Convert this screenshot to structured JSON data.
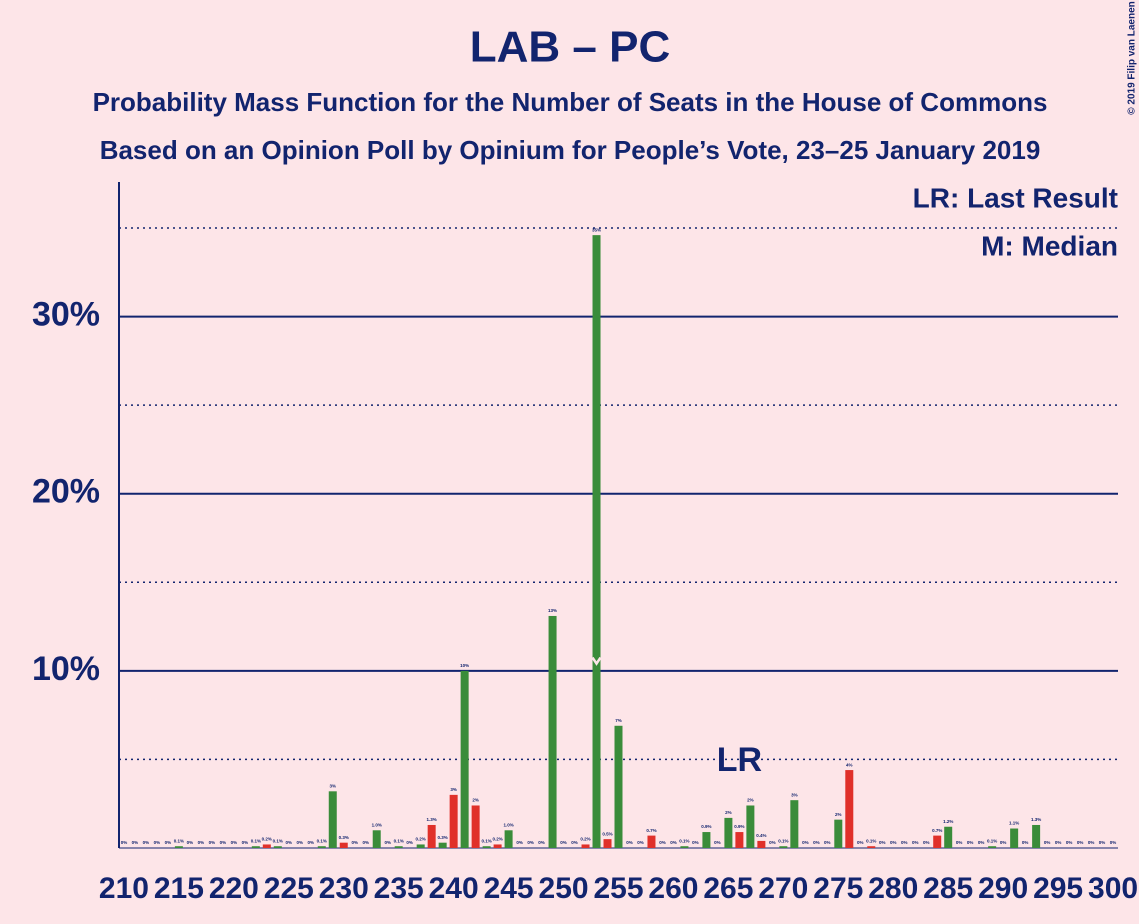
{
  "chart_data": {
    "type": "bar",
    "title": "LAB – PC",
    "subtitle": "Probability Mass Function for the Number of Seats in the House of Commons",
    "subtitle2": "Based on an Opinion Poll by Opinium for People’s Vote, 23–25 January 2019",
    "legend_lr": "LR: Last Result",
    "legend_median": "M: Median",
    "annotation_lr": "LR",
    "copyright": "© 2019 Filip van Laenen",
    "last_result": 266,
    "median": 253,
    "x": [
      210,
      211,
      212,
      213,
      214,
      215,
      216,
      217,
      218,
      219,
      220,
      221,
      222,
      223,
      224,
      225,
      226,
      227,
      228,
      229,
      230,
      231,
      232,
      233,
      234,
      235,
      236,
      237,
      238,
      239,
      240,
      241,
      242,
      243,
      244,
      245,
      246,
      247,
      248,
      249,
      250,
      251,
      252,
      253,
      254,
      255,
      256,
      257,
      258,
      259,
      260,
      261,
      262,
      263,
      264,
      265,
      266,
      267,
      268,
      269,
      270,
      271,
      272,
      273,
      274,
      275,
      276,
      277,
      278,
      279,
      280,
      281,
      282,
      283,
      284,
      285,
      286,
      287,
      288,
      289,
      290,
      291,
      292,
      293,
      294,
      295,
      296,
      297,
      298,
      299,
      300
    ],
    "values": [
      0,
      0,
      0,
      0,
      0,
      0.1,
      0,
      0,
      0,
      0,
      0,
      0,
      0.1,
      0.2,
      0.1,
      0,
      0,
      0,
      0.1,
      3.2,
      0.3,
      0,
      0,
      1.0,
      0,
      0.1,
      0,
      0.2,
      1.3,
      0.3,
      3.0,
      10.0,
      2.4,
      0.1,
      0.2,
      1.0,
      0,
      0,
      0,
      13.1,
      0,
      0,
      0.2,
      34.6,
      0.5,
      6.9,
      0,
      0,
      0.7,
      0,
      0,
      0.1,
      0,
      0.9,
      0,
      1.7,
      0.9,
      2.4,
      0.4,
      0,
      0.1,
      2.7,
      0,
      0,
      0,
      1.6,
      4.4,
      0,
      0.1,
      0,
      0,
      0,
      0,
      0,
      0.7,
      1.2,
      0,
      0,
      0,
      0.1,
      0,
      1.1,
      0,
      1.3,
      0,
      0,
      0,
      0,
      0,
      0,
      0
    ],
    "value_labels": [
      "0%",
      "0%",
      "0%",
      "0%",
      "0%",
      "0.1%",
      "0%",
      "0%",
      "0%",
      "0%",
      "0%",
      "0%",
      "0.1%",
      "0.2%",
      "0.1%",
      "0%",
      "0%",
      "0%",
      "0.1%",
      "3%",
      "0.3%",
      "0%",
      "0%",
      "1.0%",
      "0%",
      "0.1%",
      "0%",
      "0.2%",
      "1.3%",
      "0.3%",
      "3%",
      "10%",
      "2%",
      "0.1%",
      "0.2%",
      "1.0%",
      "0%",
      "0%",
      "0%",
      "13%",
      "0%",
      "0%",
      "0.2%",
      "35%",
      "0.5%",
      "7%",
      "0%",
      "0%",
      "0.7%",
      "0%",
      "0%",
      "0.1%",
      "0%",
      "0.9%",
      "0%",
      "2%",
      "0.9%",
      "2%",
      "0.4%",
      "0%",
      "0.1%",
      "3%",
      "0%",
      "0%",
      "0%",
      "2%",
      "4%",
      "0%",
      "0.1%",
      "0%",
      "0%",
      "0%",
      "0%",
      "0%",
      "0.7%",
      "1.2%",
      "0%",
      "0%",
      "0%",
      "0.1%",
      "0%",
      "1.1%",
      "0%",
      "1.3%",
      "0%",
      "0%",
      "0%",
      "0%",
      "0%",
      "0%",
      "0%"
    ],
    "colors": [
      "#3a8c3a",
      "#3a8c3a",
      "#3a8c3a",
      "#3a8c3a",
      "#3a8c3a",
      "#3a8c3a",
      "#3a8c3a",
      "#3a8c3a",
      "#3a8c3a",
      "#3a8c3a",
      "#3a8c3a",
      "#3a8c3a",
      "#3a8c3a",
      "#e0302a",
      "#3a8c3a",
      "#3a8c3a",
      "#3a8c3a",
      "#3a8c3a",
      "#3a8c3a",
      "#3a8c3a",
      "#e0302a",
      "#3a8c3a",
      "#3a8c3a",
      "#3a8c3a",
      "#3a8c3a",
      "#3a8c3a",
      "#3a8c3a",
      "#3a8c3a",
      "#e0302a",
      "#3a8c3a",
      "#e0302a",
      "#3a8c3a",
      "#e0302a",
      "#3a8c3a",
      "#e0302a",
      "#3a8c3a",
      "#3a8c3a",
      "#3a8c3a",
      "#3a8c3a",
      "#3a8c3a",
      "#3a8c3a",
      "#3a8c3a",
      "#e0302a",
      "#3a8c3a",
      "#e0302a",
      "#3a8c3a",
      "#3a8c3a",
      "#3a8c3a",
      "#e0302a",
      "#3a8c3a",
      "#3a8c3a",
      "#3a8c3a",
      "#3a8c3a",
      "#3a8c3a",
      "#3a8c3a",
      "#3a8c3a",
      "#e0302a",
      "#3a8c3a",
      "#e0302a",
      "#3a8c3a",
      "#3a8c3a",
      "#3a8c3a",
      "#3a8c3a",
      "#3a8c3a",
      "#3a8c3a",
      "#3a8c3a",
      "#e0302a",
      "#3a8c3a",
      "#e0302a",
      "#3a8c3a",
      "#3a8c3a",
      "#3a8c3a",
      "#3a8c3a",
      "#3a8c3a",
      "#e0302a",
      "#3a8c3a",
      "#3a8c3a",
      "#3a8c3a",
      "#3a8c3a",
      "#3a8c3a",
      "#3a8c3a",
      "#3a8c3a",
      "#3a8c3a",
      "#3a8c3a",
      "#3a8c3a",
      "#3a8c3a",
      "#3a8c3a",
      "#3a8c3a",
      "#3a8c3a",
      "#3a8c3a",
      "#3a8c3a"
    ],
    "xlim": [
      209.55,
      300.45
    ],
    "xticks": [
      210,
      215,
      220,
      225,
      230,
      235,
      240,
      245,
      250,
      255,
      260,
      265,
      270,
      275,
      280,
      285,
      290,
      295,
      300
    ],
    "ylim": [
      0,
      37.6
    ],
    "yticks": [
      {
        "value": 10,
        "label": "10%"
      },
      {
        "value": 20,
        "label": "20%"
      },
      {
        "value": 30,
        "label": "30%"
      }
    ],
    "minor_gridlines": [
      5,
      15,
      25,
      35
    ],
    "grid": true
  }
}
